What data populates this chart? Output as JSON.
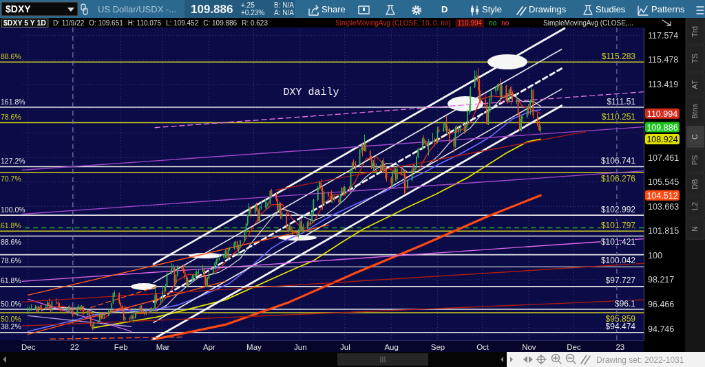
{
  "chart_data": {
    "type": "candlestick",
    "title": "DXY daily",
    "log": true,
    "grid": true,
    "legend": "top right",
    "xlim": [
      "2021-11-27",
      "2023-01-17"
    ],
    "xticks": [
      {
        "value": "2021-12-01",
        "label": "Dec"
      },
      {
        "value": "2022-01-01",
        "label": "22"
      },
      {
        "value": "2022-02-01",
        "label": "Feb"
      },
      {
        "value": "2022-03-01",
        "label": "Mar"
      },
      {
        "value": "2022-04-01",
        "label": "Apr"
      },
      {
        "value": "2022-05-01",
        "label": "May"
      },
      {
        "value": "2022-06-01",
        "label": "Jun"
      },
      {
        "value": "2022-07-01",
        "label": "Jul"
      },
      {
        "value": "2022-08-01",
        "label": "Aug"
      },
      {
        "value": "2022-09-01",
        "label": "Sep"
      },
      {
        "value": "2022-10-01",
        "label": "Oct"
      },
      {
        "value": "2022-11-01",
        "label": "Nov"
      },
      {
        "value": "2022-12-01",
        "label": "Dec"
      },
      {
        "value": "2023-01-01",
        "label": "23"
      }
    ],
    "ylim": [
      93.94,
      118.25
    ],
    "yticks": [
      94.746,
      96.466,
      98.217,
      100,
      101.815,
      103.663,
      105.545,
      107.461,
      {
        "value": 109.411,
        "label": null
      },
      {
        "value": 111.397,
        "label": null
      },
      113.419,
      115.478,
      117.574
    ],
    "x": [
      "2021-12-01",
      "2021-12-02",
      "2021-12-03",
      "2021-12-06",
      "2021-12-07",
      "2021-12-08",
      "2021-12-09",
      "2021-12-10",
      "2021-12-13",
      "2021-12-14",
      "2021-12-15",
      "2021-12-16",
      "2021-12-17",
      "2021-12-20",
      "2021-12-21",
      "2021-12-22",
      "2021-12-23",
      "2021-12-24",
      "2021-12-27",
      "2021-12-28",
      "2021-12-29",
      "2021-12-30",
      "2021-12-31",
      "2022-01-03",
      "2022-01-04",
      "2022-01-05",
      "2022-01-06",
      "2022-01-07",
      "2022-01-10",
      "2022-01-11",
      "2022-01-12",
      "2022-01-13",
      "2022-01-14",
      "2022-01-17",
      "2022-01-18",
      "2022-01-19",
      "2022-01-20",
      "2022-01-21",
      "2022-01-24",
      "2022-01-25",
      "2022-01-26",
      "2022-01-27",
      "2022-01-28",
      "2022-01-31",
      "2022-02-01",
      "2022-02-02",
      "2022-02-03",
      "2022-02-04",
      "2022-02-07",
      "2022-02-08",
      "2022-02-09",
      "2022-02-10",
      "2022-02-11",
      "2022-02-14",
      "2022-02-15",
      "2022-02-16",
      "2022-02-17",
      "2022-02-18",
      "2022-02-21",
      "2022-02-22",
      "2022-02-23",
      "2022-02-24",
      "2022-02-25",
      "2022-02-28",
      "2022-03-01",
      "2022-03-02",
      "2022-03-03",
      "2022-03-04",
      "2022-03-07",
      "2022-03-08",
      "2022-03-09",
      "2022-03-10",
      "2022-03-11",
      "2022-03-14",
      "2022-03-15",
      "2022-03-16",
      "2022-03-17",
      "2022-03-18",
      "2022-03-21",
      "2022-03-22",
      "2022-03-23",
      "2022-03-24",
      "2022-03-25",
      "2022-03-28",
      "2022-03-29",
      "2022-03-30",
      "2022-03-31",
      "2022-04-01",
      "2022-04-04",
      "2022-04-05",
      "2022-04-06",
      "2022-04-07",
      "2022-04-08",
      "2022-04-11",
      "2022-04-12",
      "2022-04-13",
      "2022-04-14",
      "2022-04-15",
      "2022-04-18",
      "2022-04-19",
      "2022-04-20",
      "2022-04-21",
      "2022-04-22",
      "2022-04-25",
      "2022-04-26",
      "2022-04-27",
      "2022-04-28",
      "2022-04-29",
      "2022-05-02",
      "2022-05-03",
      "2022-05-04",
      "2022-05-05",
      "2022-05-06",
      "2022-05-09",
      "2022-05-10",
      "2022-05-11",
      "2022-05-12",
      "2022-05-13",
      "2022-05-16",
      "2022-05-17",
      "2022-05-18",
      "2022-05-19",
      "2022-05-20",
      "2022-05-23",
      "2022-05-24",
      "2022-05-25",
      "2022-05-26",
      "2022-05-27",
      "2022-05-30",
      "2022-05-31",
      "2022-06-01",
      "2022-06-02",
      "2022-06-03",
      "2022-06-06",
      "2022-06-07",
      "2022-06-08",
      "2022-06-09",
      "2022-06-10",
      "2022-06-13",
      "2022-06-14",
      "2022-06-15",
      "2022-06-16",
      "2022-06-17",
      "2022-06-20",
      "2022-06-21",
      "2022-06-22",
      "2022-06-23",
      "2022-06-24",
      "2022-06-27",
      "2022-06-28",
      "2022-06-29",
      "2022-06-30",
      "2022-07-01",
      "2022-07-04",
      "2022-07-05",
      "2022-07-06",
      "2022-07-07",
      "2022-07-08",
      "2022-07-11",
      "2022-07-12",
      "2022-07-13",
      "2022-07-14",
      "2022-07-15",
      "2022-07-18",
      "2022-07-19",
      "2022-07-20",
      "2022-07-21",
      "2022-07-22",
      "2022-07-25",
      "2022-07-26",
      "2022-07-27",
      "2022-07-28",
      "2022-07-29",
      "2022-08-01",
      "2022-08-02",
      "2022-08-03",
      "2022-08-04",
      "2022-08-05",
      "2022-08-08",
      "2022-08-09",
      "2022-08-10",
      "2022-08-11",
      "2022-08-12",
      "2022-08-15",
      "2022-08-16",
      "2022-08-17",
      "2022-08-18",
      "2022-08-19",
      "2022-08-22",
      "2022-08-23",
      "2022-08-24",
      "2022-08-25",
      "2022-08-26",
      "2022-08-29",
      "2022-08-30",
      "2022-08-31",
      "2022-09-01",
      "2022-09-02",
      "2022-09-05",
      "2022-09-06",
      "2022-09-07",
      "2022-09-08",
      "2022-09-09",
      "2022-09-12",
      "2022-09-13",
      "2022-09-14",
      "2022-09-15",
      "2022-09-16",
      "2022-09-19",
      "2022-09-20",
      "2022-09-21",
      "2022-09-22",
      "2022-09-23",
      "2022-09-26",
      "2022-09-27",
      "2022-09-28",
      "2022-09-29",
      "2022-09-30",
      "2022-10-03",
      "2022-10-04",
      "2022-10-05",
      "2022-10-06",
      "2022-10-07",
      "2022-10-10",
      "2022-10-11",
      "2022-10-12",
      "2022-10-13",
      "2022-10-14",
      "2022-10-17",
      "2022-10-18",
      "2022-10-19",
      "2022-10-20",
      "2022-10-21",
      "2022-10-24",
      "2022-10-25",
      "2022-10-26",
      "2022-10-27",
      "2022-10-28",
      "2022-10-31",
      "2022-11-01",
      "2022-11-02",
      "2022-11-03",
      "2022-11-04",
      "2022-11-07",
      "2022-11-08",
      "2022-11-09"
    ],
    "ohlc": [
      [
        95.98,
        96.3,
        95.75,
        96.03
      ],
      [
        96.03,
        96.3,
        95.95,
        96.16
      ],
      [
        96.16,
        96.45,
        96.0,
        96.16
      ],
      [
        96.16,
        96.4,
        96.05,
        96.28
      ],
      [
        96.28,
        96.35,
        95.85,
        95.92
      ],
      [
        95.92,
        96.35,
        95.85,
        96.28
      ],
      [
        96.28,
        96.4,
        96.05,
        96.17
      ],
      [
        96.17,
        96.4,
        95.95,
        96.07
      ],
      [
        96.07,
        96.4,
        96.05,
        96.3
      ],
      [
        96.3,
        96.7,
        96.25,
        96.58
      ],
      [
        96.58,
        96.9,
        96.25,
        96.38
      ],
      [
        96.38,
        96.45,
        95.85,
        96.02
      ],
      [
        96.02,
        96.7,
        95.95,
        96.63
      ],
      [
        96.63,
        96.9,
        96.45,
        96.57
      ],
      [
        96.57,
        96.7,
        96.3,
        96.5
      ],
      [
        96.5,
        96.55,
        96.0,
        96.09
      ],
      [
        96.09,
        96.25,
        95.9,
        96.07
      ],
      [
        96.07,
        96.12,
        95.95,
        96.01
      ],
      [
        96.01,
        96.2,
        95.95,
        96.07
      ],
      [
        96.07,
        96.35,
        96.0,
        96.22
      ],
      [
        96.22,
        96.4,
        95.85,
        95.96
      ],
      [
        95.96,
        96.1,
        95.75,
        95.96
      ],
      [
        95.96,
        96.05,
        95.55,
        95.67
      ],
      [
        95.67,
        96.3,
        95.6,
        96.21
      ],
      [
        96.21,
        96.45,
        96.05,
        96.27
      ],
      [
        96.27,
        96.35,
        95.95,
        96.17
      ],
      [
        96.17,
        96.4,
        96.05,
        96.32
      ],
      [
        96.32,
        96.35,
        95.7,
        95.74
      ],
      [
        95.74,
        96.1,
        95.65,
        95.99
      ],
      [
        95.99,
        96.05,
        95.55,
        95.62
      ],
      [
        95.62,
        95.65,
        94.9,
        94.96
      ],
      [
        94.96,
        95.05,
        94.63,
        94.76
      ],
      [
        94.76,
        95.25,
        94.65,
        95.17
      ],
      [
        95.17,
        95.35,
        95.1,
        95.3
      ],
      [
        95.3,
        95.85,
        95.2,
        95.76
      ],
      [
        95.76,
        95.8,
        95.4,
        95.51
      ],
      [
        95.51,
        95.85,
        95.45,
        95.78
      ],
      [
        95.78,
        95.85,
        95.5,
        95.64
      ],
      [
        95.64,
        96.1,
        95.6,
        95.97
      ],
      [
        95.97,
        96.05,
        95.8,
        95.95
      ],
      [
        95.95,
        96.6,
        95.85,
        96.54
      ],
      [
        96.54,
        97.3,
        96.45,
        97.25
      ],
      [
        97.25,
        97.44,
        97.0,
        97.27
      ],
      [
        97.27,
        97.3,
        96.45,
        96.54
      ],
      [
        96.54,
        96.65,
        96.25,
        96.36
      ],
      [
        96.36,
        96.4,
        95.95,
        96.0
      ],
      [
        96.0,
        96.15,
        95.3,
        95.38
      ],
      [
        95.38,
        95.6,
        95.14,
        95.48
      ],
      [
        95.48,
        95.55,
        95.25,
        95.41
      ],
      [
        95.41,
        95.75,
        95.35,
        95.62
      ],
      [
        95.62,
        95.7,
        95.4,
        95.5
      ],
      [
        95.5,
        95.9,
        95.15,
        95.52
      ],
      [
        95.52,
        96.2,
        95.45,
        96.04
      ],
      [
        96.04,
        96.45,
        95.95,
        96.33
      ],
      [
        96.33,
        96.4,
        95.9,
        95.98
      ],
      [
        95.98,
        96.05,
        95.75,
        95.83
      ],
      [
        95.83,
        95.95,
        95.65,
        95.8
      ],
      [
        95.8,
        96.1,
        95.7,
        96.03
      ],
      [
        96.03,
        96.2,
        95.85,
        96.03
      ],
      [
        96.03,
        96.25,
        95.8,
        96.01
      ],
      [
        96.01,
        96.25,
        95.95,
        96.18
      ],
      [
        96.18,
        97.75,
        96.15,
        97.13
      ],
      [
        97.13,
        97.25,
        96.5,
        96.62
      ],
      [
        96.62,
        97.0,
        96.4,
        96.71
      ],
      [
        96.71,
        97.8,
        96.65,
        97.41
      ],
      [
        97.41,
        97.75,
        97.2,
        97.4
      ],
      [
        97.4,
        97.9,
        97.35,
        97.77
      ],
      [
        97.77,
        98.75,
        97.7,
        98.66
      ],
      [
        98.66,
        99.42,
        98.6,
        99.02
      ],
      [
        99.02,
        99.35,
        98.8,
        99.06
      ],
      [
        99.06,
        99.1,
        97.75,
        97.96
      ],
      [
        97.96,
        98.6,
        97.7,
        98.52
      ],
      [
        98.52,
        99.25,
        98.45,
        99.12
      ],
      [
        99.12,
        99.3,
        98.85,
        99.02
      ],
      [
        99.02,
        99.3,
        98.7,
        98.8
      ],
      [
        98.8,
        99.0,
        98.3,
        98.43
      ],
      [
        98.43,
        98.5,
        97.7,
        97.81
      ],
      [
        97.81,
        98.4,
        97.7,
        98.23
      ],
      [
        98.23,
        98.55,
        98.1,
        98.48
      ],
      [
        98.48,
        98.65,
        98.25,
        98.48
      ],
      [
        98.48,
        98.8,
        98.3,
        98.62
      ],
      [
        98.62,
        98.9,
        98.5,
        98.79
      ],
      [
        98.79,
        99.0,
        98.6,
        98.79
      ],
      [
        98.79,
        99.3,
        98.75,
        98.98
      ],
      [
        98.98,
        99.05,
        97.85,
        98.4
      ],
      [
        98.4,
        98.5,
        97.7,
        97.8
      ],
      [
        97.8,
        98.4,
        97.7,
        98.31
      ],
      [
        98.31,
        98.8,
        98.25,
        98.63
      ],
      [
        98.63,
        99.1,
        98.55,
        99.04
      ],
      [
        99.04,
        99.5,
        98.9,
        99.45
      ],
      [
        99.45,
        99.75,
        99.3,
        99.62
      ],
      [
        99.62,
        99.85,
        99.4,
        99.76
      ],
      [
        99.76,
        100.0,
        99.6,
        99.83
      ],
      [
        99.83,
        100.1,
        99.7,
        99.94
      ],
      [
        99.94,
        100.4,
        99.8,
        100.32
      ],
      [
        100.32,
        100.55,
        99.75,
        99.82
      ],
      [
        99.82,
        100.55,
        99.6,
        100.45
      ],
      [
        100.45,
        100.6,
        100.35,
        100.5
      ],
      [
        100.5,
        101.0,
        100.4,
        100.94
      ],
      [
        100.94,
        101.05,
        100.7,
        101.03
      ],
      [
        101.03,
        101.05,
        100.35,
        100.39
      ],
      [
        100.39,
        100.8,
        99.95,
        100.64
      ],
      [
        100.64,
        101.15,
        100.55,
        101.12
      ],
      [
        101.12,
        101.85,
        101.0,
        101.75
      ],
      [
        101.75,
        102.4,
        101.6,
        102.35
      ],
      [
        102.35,
        103.0,
        102.2,
        102.97
      ],
      [
        102.97,
        103.93,
        102.9,
        103.63
      ],
      [
        103.63,
        103.7,
        102.8,
        103.19
      ],
      [
        103.19,
        103.85,
        103.05,
        103.76
      ],
      [
        103.76,
        103.95,
        103.3,
        103.44
      ],
      [
        103.44,
        103.55,
        102.4,
        102.55
      ],
      [
        102.55,
        103.7,
        102.4,
        103.53
      ],
      [
        103.53,
        104.05,
        103.4,
        103.66
      ],
      [
        103.66,
        104.2,
        103.5,
        103.66
      ],
      [
        103.66,
        104.0,
        103.4,
        103.92
      ],
      [
        103.92,
        104.1,
        103.5,
        103.87
      ],
      [
        103.87,
        104.92,
        103.8,
        104.85
      ],
      [
        104.85,
        105.01,
        104.4,
        104.56
      ],
      [
        104.56,
        104.7,
        104.05,
        104.21
      ],
      [
        104.21,
        104.3,
        103.2,
        103.33
      ],
      [
        103.33,
        104.0,
        103.15,
        103.85
      ],
      [
        103.85,
        103.95,
        102.7,
        102.89
      ],
      [
        102.89,
        103.3,
        102.65,
        103.14
      ],
      [
        103.14,
        103.2,
        101.95,
        102.06
      ],
      [
        102.06,
        102.15,
        101.65,
        101.83
      ],
      [
        101.83,
        102.3,
        101.75,
        102.15
      ],
      [
        102.15,
        102.25,
        101.75,
        101.84
      ],
      [
        101.84,
        101.95,
        101.5,
        101.67
      ],
      [
        101.67,
        101.7,
        101.3,
        101.45
      ],
      [
        101.45,
        101.95,
        101.3,
        101.76
      ],
      [
        101.76,
        102.7,
        101.6,
        102.56
      ],
      [
        102.56,
        102.75,
        101.8,
        101.84
      ],
      [
        101.84,
        102.35,
        101.65,
        102.14
      ],
      [
        102.14,
        102.55,
        101.95,
        102.44
      ],
      [
        102.44,
        102.7,
        102.15,
        102.34
      ],
      [
        102.34,
        102.65,
        102.2,
        102.55
      ],
      [
        102.55,
        103.35,
        102.4,
        103.27
      ],
      [
        103.27,
        104.25,
        103.05,
        104.15
      ],
      [
        104.15,
        105.25,
        104.05,
        105.08
      ],
      [
        105.08,
        105.65,
        104.9,
        105.51
      ],
      [
        105.51,
        105.79,
        104.85,
        105.0
      ],
      [
        105.0,
        105.2,
        103.4,
        103.9
      ],
      [
        103.9,
        104.85,
        103.75,
        104.7
      ],
      [
        104.7,
        104.8,
        104.35,
        104.44
      ],
      [
        104.44,
        104.7,
        104.25,
        104.41
      ],
      [
        104.41,
        104.9,
        103.95,
        104.18
      ],
      [
        104.18,
        104.6,
        103.9,
        104.41
      ],
      [
        104.41,
        104.5,
        104.0,
        104.19
      ],
      [
        104.19,
        104.25,
        103.85,
        103.95
      ],
      [
        103.95,
        104.6,
        103.85,
        104.48
      ],
      [
        104.48,
        105.15,
        104.35,
        105.1
      ],
      [
        105.1,
        105.2,
        104.6,
        104.69
      ],
      [
        104.69,
        105.25,
        104.6,
        105.14
      ],
      [
        105.14,
        105.2,
        104.8,
        105.11
      ],
      [
        105.11,
        106.6,
        104.95,
        106.52
      ],
      [
        106.52,
        107.15,
        106.3,
        107.05
      ],
      [
        107.05,
        107.3,
        106.7,
        107.01
      ],
      [
        107.01,
        107.2,
        106.45,
        106.88
      ],
      [
        106.88,
        108.15,
        106.85,
        108.07
      ],
      [
        108.07,
        108.55,
        107.85,
        108.24
      ],
      [
        108.24,
        108.58,
        107.55,
        108.02
      ],
      [
        108.02,
        109.29,
        107.95,
        108.56
      ],
      [
        108.56,
        108.7,
        107.9,
        108.01
      ],
      [
        108.01,
        108.05,
        107.2,
        107.34
      ],
      [
        107.34,
        107.6,
        106.55,
        106.66
      ],
      [
        106.66,
        107.25,
        106.5,
        107.05
      ],
      [
        107.05,
        107.45,
        106.4,
        106.59
      ],
      [
        106.59,
        107.0,
        106.1,
        106.73
      ],
      [
        106.73,
        106.9,
        106.35,
        106.49
      ],
      [
        106.49,
        107.25,
        106.4,
        107.18
      ],
      [
        107.18,
        107.4,
        106.3,
        106.43
      ],
      [
        106.43,
        106.6,
        105.75,
        106.26
      ],
      [
        106.26,
        106.55,
        105.55,
        105.86
      ],
      [
        105.86,
        105.95,
        105.05,
        105.44
      ],
      [
        105.44,
        106.4,
        105.1,
        106.31
      ],
      [
        106.31,
        106.8,
        106.15,
        106.52
      ],
      [
        106.52,
        106.6,
        105.6,
        105.73
      ],
      [
        105.73,
        106.8,
        105.55,
        106.58
      ],
      [
        106.58,
        106.65,
        106.05,
        106.36
      ],
      [
        106.36,
        106.55,
        106.1,
        106.42
      ],
      [
        106.42,
        106.45,
        104.64,
        105.2
      ],
      [
        105.2,
        105.45,
        104.7,
        105.11
      ],
      [
        105.11,
        105.8,
        104.95,
        105.68
      ],
      [
        105.68,
        106.65,
        105.6,
        106.54
      ],
      [
        106.54,
        106.95,
        106.25,
        106.46
      ],
      [
        106.46,
        106.9,
        106.2,
        106.67
      ],
      [
        106.67,
        107.6,
        106.5,
        107.5
      ],
      [
        107.5,
        108.2,
        107.4,
        108.16
      ],
      [
        108.16,
        109.05,
        108.05,
        108.97
      ],
      [
        108.97,
        109.25,
        108.45,
        108.58
      ],
      [
        108.58,
        108.85,
        108.4,
        108.62
      ],
      [
        108.62,
        108.7,
        108.1,
        108.43
      ],
      [
        108.43,
        108.95,
        107.6,
        108.8
      ],
      [
        108.8,
        109.45,
        108.6,
        108.8
      ],
      [
        108.8,
        109.05,
        108.4,
        108.78
      ],
      [
        108.78,
        109.0,
        108.5,
        108.7
      ],
      [
        108.7,
        109.9,
        108.6,
        109.68
      ],
      [
        109.68,
        110.0,
        109.45,
        109.54
      ],
      [
        109.54,
        110.25,
        109.5,
        109.85
      ],
      [
        109.85,
        110.35,
        109.6,
        110.25
      ],
      [
        110.25,
        110.79,
        109.45,
        109.55
      ],
      [
        109.55,
        110.0,
        109.25,
        109.72
      ],
      [
        109.72,
        109.8,
        108.6,
        109.0
      ],
      [
        109.0,
        109.1,
        107.85,
        108.33
      ],
      [
        108.33,
        109.95,
        108.25,
        109.82
      ],
      [
        109.82,
        110.05,
        109.45,
        109.63
      ],
      [
        109.63,
        109.9,
        109.3,
        109.72
      ],
      [
        109.72,
        110.1,
        109.45,
        109.73
      ],
      [
        109.73,
        110.15,
        109.35,
        109.54
      ],
      [
        109.54,
        110.3,
        109.45,
        110.18
      ],
      [
        110.18,
        111.3,
        109.8,
        111.2
      ],
      [
        111.2,
        111.7,
        110.9,
        111.24
      ],
      [
        111.24,
        113.25,
        111.1,
        113.19
      ],
      [
        113.19,
        114.55,
        113.1,
        114.1
      ],
      [
        114.1,
        114.6,
        113.65,
        114.15
      ],
      [
        114.15,
        114.78,
        112.9,
        113.63
      ],
      [
        113.63,
        113.85,
        111.9,
        112.26
      ],
      [
        112.26,
        112.9,
        111.75,
        112.12
      ],
      [
        112.12,
        112.55,
        111.35,
        111.68
      ],
      [
        111.68,
        111.85,
        110.05,
        110.16
      ],
      [
        110.16,
        111.45,
        110.05,
        111.19
      ],
      [
        111.19,
        112.35,
        111.05,
        112.25
      ],
      [
        112.25,
        112.95,
        111.95,
        112.8
      ],
      [
        112.8,
        113.25,
        112.55,
        113.15
      ],
      [
        113.15,
        113.45,
        112.85,
        113.28
      ],
      [
        113.28,
        113.5,
        112.95,
        113.24
      ],
      [
        113.24,
        113.92,
        111.95,
        112.45
      ],
      [
        112.45,
        113.4,
        112.35,
        113.31
      ],
      [
        113.31,
        113.35,
        111.95,
        112.05
      ],
      [
        112.05,
        112.7,
        111.8,
        111.99
      ],
      [
        111.99,
        113.05,
        111.9,
        112.94
      ],
      [
        112.94,
        113.2,
        112.45,
        112.85
      ],
      [
        112.85,
        113.25,
        111.7,
        111.98
      ],
      [
        111.98,
        112.65,
        111.75,
        112.01
      ],
      [
        112.01,
        112.05,
        110.8,
        110.92
      ],
      [
        110.92,
        111.0,
        109.55,
        109.69
      ],
      [
        109.69,
        110.8,
        109.55,
        110.58
      ],
      [
        110.58,
        110.9,
        110.25,
        110.73
      ],
      [
        110.73,
        111.6,
        110.6,
        111.53
      ],
      [
        111.53,
        111.8,
        110.9,
        111.49
      ],
      [
        111.49,
        112.15,
        110.9,
        111.95
      ],
      [
        111.95,
        113.15,
        111.85,
        112.93
      ],
      [
        112.93,
        113.0,
        110.6,
        110.8
      ],
      [
        110.8,
        111.0,
        109.95,
        110.11
      ],
      [
        110.11,
        110.4,
        109.55,
        109.64
      ],
      [
        109.651,
        110.075,
        109.452,
        109.886
      ]
    ],
    "series": [
      {
        "type": "line",
        "name": "SimpleMovingAvg (CLOSE, 10, 0, no)",
        "color": "#d42a1e",
        "x": [
          "2021-12-10",
          "2021-12-17",
          "2021-12-24",
          "2021-12-31",
          "2022-01-07",
          "2022-01-14",
          "2022-01-21",
          "2022-01-28",
          "2022-02-04",
          "2022-02-11",
          "2022-02-18",
          "2022-02-25",
          "2022-03-04",
          "2022-03-11",
          "2022-03-18",
          "2022-03-25",
          "2022-04-01",
          "2022-04-08",
          "2022-04-15",
          "2022-04-22",
          "2022-04-29",
          "2022-05-06",
          "2022-05-13",
          "2022-05-20",
          "2022-05-27",
          "2022-06-03",
          "2022-06-10",
          "2022-06-17",
          "2022-06-24",
          "2022-07-01",
          "2022-07-08",
          "2022-07-15",
          "2022-07-22",
          "2022-07-29",
          "2022-08-05",
          "2022-08-12",
          "2022-08-19",
          "2022-08-26",
          "2022-09-02",
          "2022-09-09",
          "2022-09-16",
          "2022-09-23",
          "2022-09-30",
          "2022-10-07",
          "2022-10-14",
          "2022-10-21",
          "2022-10-28",
          "2022-11-04",
          "2022-11-09"
        ],
        "values": [
          96.13,
          96.26,
          96.32,
          96.12,
          96.06,
          95.72,
          95.45,
          96.1,
          96.28,
          95.79,
          95.81,
          96.19,
          96.99,
          98.17,
          98.6,
          98.55,
          98.53,
          98.98,
          99.88,
          100.52,
          101.8,
          103.09,
          103.78,
          103.83,
          102.7,
          101.93,
          102.45,
          103.9,
          104.59,
          104.5,
          105.59,
          107.35,
          107.53,
          106.66,
          106.28,
          105.94,
          106.41,
          107.88,
          108.89,
          109.39,
          109.56,
          110.26,
          112.16,
          112.44,
          112.36,
          112.73,
          111.58,
          111.27,
          110.994
        ]
      },
      {
        "type": "line",
        "name": "SimpleMovingAvg (CLOSE,...",
        "color": "#d8d8d8",
        "x": [
          "2021-12-10",
          "2021-12-17",
          "2021-12-24",
          "2021-12-31",
          "2022-01-07",
          "2022-01-14",
          "2022-01-21",
          "2022-01-28",
          "2022-02-04",
          "2022-02-11",
          "2022-02-18",
          "2022-02-25",
          "2022-03-04",
          "2022-03-11",
          "2022-03-18",
          "2022-03-25",
          "2022-04-01",
          "2022-04-08",
          "2022-04-15",
          "2022-04-22",
          "2022-04-29",
          "2022-05-06",
          "2022-05-13",
          "2022-05-20",
          "2022-05-27",
          "2022-06-03",
          "2022-06-10",
          "2022-06-17",
          "2022-06-24",
          "2022-07-01",
          "2022-07-08",
          "2022-07-15",
          "2022-07-22",
          "2022-07-29",
          "2022-08-05",
          "2022-08-12",
          "2022-08-19",
          "2022-08-26",
          "2022-09-02",
          "2022-09-09",
          "2022-09-16",
          "2022-09-23",
          "2022-09-30",
          "2022-10-07",
          "2022-10-14",
          "2022-10-21",
          "2022-10-28",
          "2022-11-04",
          "2022-11-09"
        ],
        "values": [
          96.05,
          96.15,
          96.22,
          96.19,
          96.19,
          95.92,
          95.76,
          95.91,
          95.86,
          95.94,
          96.04,
          95.99,
          96.4,
          97.18,
          97.8,
          98.36,
          98.56,
          98.76,
          99.2,
          99.75,
          100.84,
          101.8,
          102.79,
          103.46,
          103.24,
          102.88,
          102.57,
          102.91,
          103.52,
          104.2,
          105.09,
          105.92,
          106.56,
          107.0,
          106.9,
          106.3,
          106.35,
          106.91,
          107.65,
          108.63,
          109.23,
          109.82,
          110.86,
          111.35,
          112.26,
          112.58,
          111.97,
          112.0,
          111.6
        ]
      },
      {
        "type": "line",
        "color": "#6a6aff",
        "x": [
          "2021-12-01",
          "2021-12-15",
          "2021-12-31",
          "2022-01-14",
          "2022-01-31",
          "2022-02-18",
          "2022-03-11",
          "2022-03-25",
          "2022-04-15",
          "2022-04-29",
          "2022-05-13",
          "2022-05-20",
          "2022-06-03",
          "2022-06-17",
          "2022-06-24",
          "2022-07-08",
          "2022-07-29",
          "2022-08-12",
          "2022-08-26",
          "2022-09-02",
          "2022-09-16",
          "2022-09-30",
          "2022-10-07",
          "2022-10-21",
          "2022-10-28",
          "2022-11-04",
          "2022-11-09"
        ],
        "values": [
          94.55,
          94.9,
          95.3,
          95.7,
          96.0,
          95.98,
          96.39,
          96.96,
          97.96,
          99.16,
          100.52,
          100.99,
          101.67,
          102.65,
          103.06,
          103.82,
          104.87,
          105.67,
          106.46,
          106.94,
          107.73,
          108.66,
          109.18,
          110.54,
          110.91,
          111.21,
          111.3
        ]
      },
      {
        "type": "line",
        "color": "#e0e000",
        "x": [
          "2022-01-13",
          "2022-02-25",
          "2022-04-12",
          "2022-05-25",
          "2022-06-10",
          "2022-06-29",
          "2022-07-14",
          "2022-07-29",
          "2022-08-12",
          "2022-08-31",
          "2022-09-21",
          "2022-10-17",
          "2022-10-31",
          "2022-11-09"
        ],
        "values": [
          94.79,
          95.55,
          96.77,
          98.85,
          99.6,
          100.96,
          101.99,
          102.8,
          103.6,
          104.6,
          105.87,
          107.81,
          108.7,
          108.924
        ]
      },
      {
        "type": "line",
        "color": "#ff4a14",
        "x": [
          "2022-02-22",
          "2022-04-12",
          "2022-05-25",
          "2022-07-08",
          "2022-08-22",
          "2022-10-05",
          "2022-11-09"
        ],
        "values": [
          93.97,
          95.02,
          96.62,
          98.7,
          100.76,
          102.92,
          104.512
        ]
      },
      {
        "type": "line",
        "color": "#f4f4f4",
        "x": [
          "2022-02-23",
          "2022-11-25"
        ],
        "values": [
          99.35,
          118.18
        ]
      },
      {
        "type": "line",
        "color": "#e8e8e8",
        "x": [
          "2022-02-23",
          "2022-11-23"
        ],
        "values": [
          98.0,
          116.37
        ]
      },
      {
        "type": "line",
        "color": "#f4f4f4",
        "line_style": "dashed",
        "x": [
          "2022-02-23",
          "2022-11-23"
        ],
        "values": [
          96.62,
          114.73
        ]
      },
      {
        "type": "line",
        "color": "#e8e8e8",
        "x": [
          "2022-02-23",
          "2022-11-23"
        ],
        "values": [
          95.17,
          113.01
        ]
      },
      {
        "type": "line",
        "color": "#f4f4f4",
        "x": [
          "2022-02-23",
          "2022-11-23"
        ],
        "values": [
          94.02,
          111.64
        ]
      },
      {
        "type": "line",
        "color": "#e070e0",
        "line_style": "dashed",
        "x": [
          "2022-02-24",
          "2023-01-17"
        ],
        "values": [
          109.85,
          112.78
        ]
      },
      {
        "type": "line",
        "color": "#a048c8",
        "x": [
          "2021-11-27",
          "2023-01-17"
        ],
        "values": [
          106.47,
          109.91
        ]
      },
      {
        "type": "line",
        "color": "#a048c8",
        "x": [
          "2021-11-27",
          "2023-01-17"
        ],
        "values": [
          103.08,
          106.41
        ]
      },
      {
        "type": "line",
        "color": "#d868e8",
        "x": [
          "2021-11-27",
          "2023-01-17"
        ],
        "values": [
          98.1,
          101.22
        ]
      },
      {
        "type": "line",
        "color": "#d868e8",
        "x": [
          "2021-12-01",
          "2022-02-08"
        ],
        "values": [
          96.82,
          94.55
        ]
      },
      {
        "type": "line",
        "color": "#b89ae8",
        "x": [
          "2021-12-01",
          "2022-02-08"
        ],
        "values": [
          95.65,
          94.88
        ]
      },
      {
        "type": "line",
        "color": "#ff5a1a",
        "x": [
          "2021-12-01",
          "2022-06-20"
        ],
        "values": [
          97.11,
          102.25
        ]
      },
      {
        "type": "line",
        "color": "#ff5a1a",
        "x": [
          "2021-12-01",
          "2022-04-12"
        ],
        "values": [
          94.35,
          98.1
        ]
      },
      {
        "type": "line",
        "color": "#a81c12",
        "x": [
          "2022-05-16",
          "2022-12-09"
        ],
        "values": [
          104.92,
          109.52
        ]
      },
      {
        "type": "line",
        "color": "#a81c12",
        "x": [
          "2021-11-27",
          "2023-01-17"
        ],
        "values": [
          96.62,
          99.4
        ]
      },
      {
        "type": "line",
        "color": "#a81c12",
        "x": [
          "2021-11-27",
          "2023-01-17"
        ],
        "values": [
          94.93,
          96.77
        ]
      },
      {
        "type": "line",
        "color": "#ff5a1a",
        "line_style": "dashed",
        "x": [
          "2022-01-12",
          "2022-02-25"
        ],
        "values": [
          96.23,
          97.7
        ]
      },
      {
        "type": "line",
        "color": "#ff5a1a",
        "line_style": "dashed",
        "x": [
          "2021-12-16",
          "2022-03-14"
        ],
        "values": [
          94.02,
          94.16
        ]
      }
    ],
    "ref_lines": [
      {
        "axis": "y",
        "value": 115.283,
        "label": "$115.283",
        "color": "#d2d21e"
      },
      {
        "axis": "y",
        "value": 111.51,
        "label": "$111.51",
        "color": "#e6e6e6"
      },
      {
        "axis": "y",
        "value": 110.251,
        "label": "$110.251",
        "color": "#d2d21e"
      },
      {
        "axis": "y",
        "value": 106.741,
        "label": "$106.741",
        "color": "#e6e6e6"
      },
      {
        "axis": "y",
        "value": 106.276,
        "label": "$106.276",
        "color": "#d2d21e"
      },
      {
        "axis": "y",
        "value": 102.992,
        "label": "$102.992",
        "color": "#e6e6e6"
      },
      {
        "axis": "y",
        "value": 102.04,
        "color": "#22b422",
        "line_style": "dashed"
      },
      {
        "axis": "y",
        "value": 101.797,
        "label": "$101.797",
        "color": "#d2d21e"
      },
      {
        "axis": "y",
        "value": 101.421,
        "label": "$101.421",
        "color": "#e6e6e6"
      },
      {
        "axis": "y",
        "value": 100.042,
        "label": "$100.042",
        "color": "#e6e6e6"
      },
      {
        "axis": "y",
        "value": 99.15,
        "color": "#a8a8b8"
      },
      {
        "axis": "y",
        "value": 97.727,
        "label": "$97.727",
        "color": "#e6e6e6"
      },
      {
        "axis": "y",
        "value": 96.1,
        "label": "$96.1",
        "color": "#e6e6e6"
      },
      {
        "axis": "y",
        "value": 95.859,
        "label": "$95.859",
        "color": "#d2d21e"
      },
      {
        "axis": "y",
        "value": 94.474,
        "label": "$94.474",
        "color": "#e6e6e6"
      },
      {
        "axis": "x",
        "value": "2021-12-31",
        "color": "#7a7aa8",
        "line_style": "dashed"
      },
      {
        "axis": "x",
        "value": "2022-12-30",
        "color": "#7a7aa8",
        "line_style": "dashed"
      }
    ],
    "annotations": [
      "$DXY",
      "US Dollar/USDX -...",
      "109.886",
      "+.25",
      "+0.23%",
      "B: N/A",
      "A: N/A",
      "Share",
      "D",
      "Style",
      "Drawings",
      "Studies",
      "Patterns",
      "$DXY 5 Y 1D",
      "D: 11/9/22",
      "O: 109.651",
      "H: 110.075",
      "L: 109.452",
      "C: 109.886",
      "R: 0.623",
      "110.994",
      "no",
      "no",
      "Trd",
      "TS",
      "AT",
      "Btns",
      "C",
      "PS",
      "DB",
      "L2",
      "N",
      "Drawing set: 2022-1031",
      "109.886",
      "110.994",
      "108.924",
      "104.512",
      {
        "text": "88.6%",
        "y": 115.283
      },
      {
        "text": "161.8%",
        "y": 111.51
      },
      {
        "text": "78.6%",
        "y": 110.251
      },
      {
        "text": "127.2%",
        "y": 106.741
      },
      {
        "text": "70.7%",
        "y": 106.276
      },
      {
        "text": "100.0%",
        "y": 102.992
      },
      {
        "text": "61.8%",
        "y": 101.797
      },
      {
        "text": "88.6%",
        "y": 101.421
      },
      {
        "text": "78.6%",
        "y": 100.042
      },
      {
        "text": "61.8%",
        "y": 97.727
      },
      {
        "text": "50.0%",
        "y": 96.1
      },
      {
        "text": "50.0%",
        "y": 95.859
      },
      {
        "text": "38.2%",
        "y": 94.474
      }
    ]
  }
}
